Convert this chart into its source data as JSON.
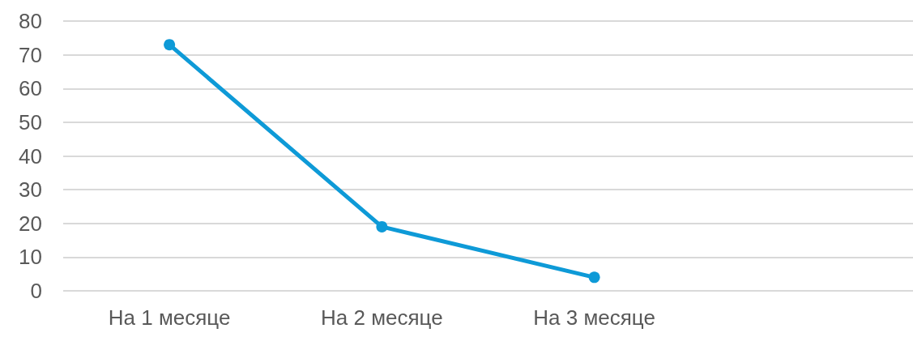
{
  "chart_data": {
    "type": "line",
    "categories": [
      "На 1 месяце",
      "На 2 месяце",
      "На 3 месяце",
      null
    ],
    "series": [
      {
        "color": "#0e9ad7",
        "values": [
          73,
          19,
          4,
          null
        ]
      }
    ],
    "ylim": [
      0,
      80
    ],
    "yticks": [
      0,
      10,
      20,
      30,
      40,
      50,
      60,
      70,
      80
    ],
    "grid": "y",
    "marker": "circle",
    "line_style": "solid"
  }
}
